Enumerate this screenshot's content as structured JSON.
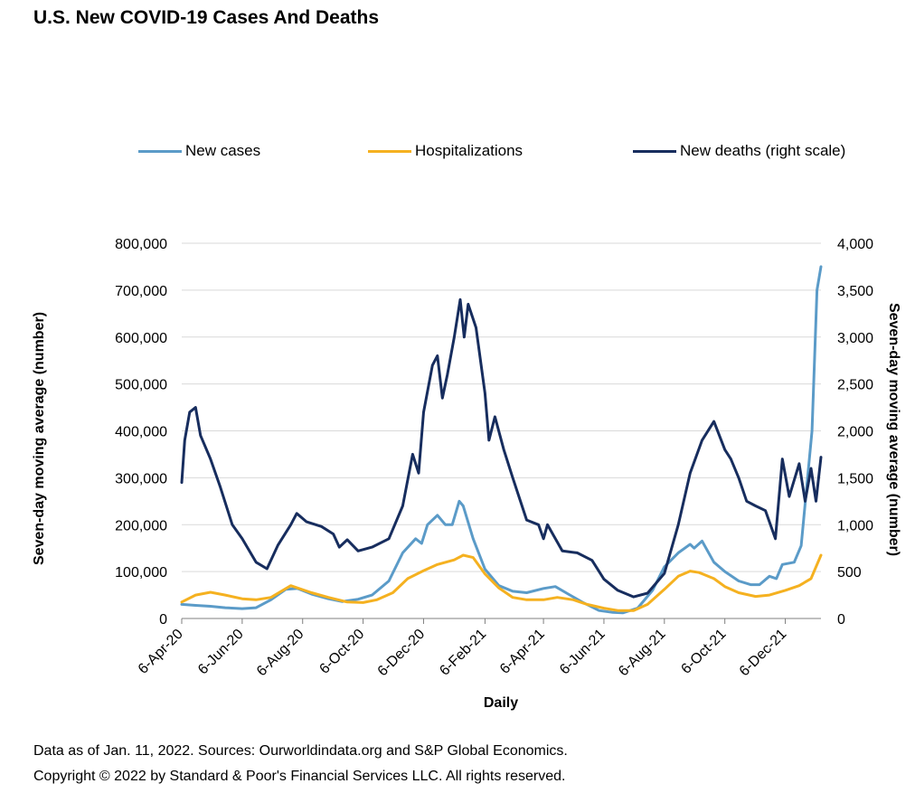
{
  "title": "U.S. New COVID-19 Cases And Deaths",
  "footer": {
    "line1": "Data as of Jan. 11, 2022. Sources: Ourworldindata.org and S&P Global  Economics.",
    "line2": "Copyright © 2022 by Standard & Poor's Financial Services LLC. All rights reserved."
  },
  "chart_data": {
    "type": "line",
    "title": "U.S. New COVID-19 Cases And Deaths",
    "xlabel": "Daily",
    "ylabel": "Seven-day moving average (number)",
    "y2label": "Seven-day moving average (number)",
    "ylim": [
      0,
      800000
    ],
    "y2lim": [
      0,
      4000
    ],
    "xlim": [
      "2020-04-06",
      "2022-01-11"
    ],
    "y_ticks": [
      "0",
      "100,000",
      "200,000",
      "300,000",
      "400,000",
      "500,000",
      "600,000",
      "700,000",
      "800,000"
    ],
    "y2_ticks": [
      "0",
      "500",
      "1,000",
      "1,500",
      "2,000",
      "2,500",
      "3,000",
      "3,500",
      "4,000"
    ],
    "x_ticks": [
      {
        "label": "6-Apr-20",
        "date": "2020-04-06"
      },
      {
        "label": "6-Jun-20",
        "date": "2020-06-06"
      },
      {
        "label": "6-Aug-20",
        "date": "2020-08-06"
      },
      {
        "label": "6-Oct-20",
        "date": "2020-10-06"
      },
      {
        "label": "6-Dec-20",
        "date": "2020-12-06"
      },
      {
        "label": "6-Feb-21",
        "date": "2021-02-06"
      },
      {
        "label": "6-Apr-21",
        "date": "2021-04-06"
      },
      {
        "label": "6-Jun-21",
        "date": "2021-06-06"
      },
      {
        "label": "6-Aug-21",
        "date": "2021-08-06"
      },
      {
        "label": "6-Oct-21",
        "date": "2021-10-06"
      },
      {
        "label": "6-Dec-21",
        "date": "2021-12-06"
      }
    ],
    "grid": true,
    "legend_position": "top",
    "series": [
      {
        "name": "New cases",
        "axis": "left",
        "color": "#5b9bc8",
        "points": [
          [
            "2020-04-06",
            30000
          ],
          [
            "2020-04-20",
            28000
          ],
          [
            "2020-05-05",
            26000
          ],
          [
            "2020-05-20",
            23000
          ],
          [
            "2020-06-06",
            21000
          ],
          [
            "2020-06-20",
            23000
          ],
          [
            "2020-07-05",
            40000
          ],
          [
            "2020-07-20",
            62000
          ],
          [
            "2020-08-01",
            64000
          ],
          [
            "2020-08-15",
            52000
          ],
          [
            "2020-09-01",
            42000
          ],
          [
            "2020-09-15",
            36000
          ],
          [
            "2020-10-01",
            41000
          ],
          [
            "2020-10-15",
            50000
          ],
          [
            "2020-11-01",
            80000
          ],
          [
            "2020-11-15",
            140000
          ],
          [
            "2020-11-28",
            170000
          ],
          [
            "2020-12-04",
            160000
          ],
          [
            "2020-12-10",
            200000
          ],
          [
            "2020-12-20",
            220000
          ],
          [
            "2020-12-28",
            200000
          ],
          [
            "2021-01-04",
            200000
          ],
          [
            "2021-01-11",
            250000
          ],
          [
            "2021-01-15",
            240000
          ],
          [
            "2021-01-25",
            170000
          ],
          [
            "2021-02-06",
            105000
          ],
          [
            "2021-02-20",
            70000
          ],
          [
            "2021-03-06",
            58000
          ],
          [
            "2021-03-20",
            55000
          ],
          [
            "2021-04-06",
            64000
          ],
          [
            "2021-04-18",
            68000
          ],
          [
            "2021-05-01",
            52000
          ],
          [
            "2021-05-15",
            35000
          ],
          [
            "2021-06-01",
            17000
          ],
          [
            "2021-06-15",
            13000
          ],
          [
            "2021-06-25",
            12000
          ],
          [
            "2021-07-10",
            22000
          ],
          [
            "2021-07-25",
            60000
          ],
          [
            "2021-08-06",
            110000
          ],
          [
            "2021-08-20",
            140000
          ],
          [
            "2021-09-01",
            158000
          ],
          [
            "2021-09-05",
            150000
          ],
          [
            "2021-09-13",
            165000
          ],
          [
            "2021-09-25",
            120000
          ],
          [
            "2021-10-06",
            100000
          ],
          [
            "2021-10-20",
            80000
          ],
          [
            "2021-11-01",
            72000
          ],
          [
            "2021-11-10",
            72000
          ],
          [
            "2021-11-20",
            90000
          ],
          [
            "2021-11-27",
            85000
          ],
          [
            "2021-12-03",
            115000
          ],
          [
            "2021-12-15",
            120000
          ],
          [
            "2021-12-22",
            155000
          ],
          [
            "2021-12-28",
            290000
          ],
          [
            "2022-01-02",
            400000
          ],
          [
            "2022-01-07",
            700000
          ],
          [
            "2022-01-11",
            750000
          ]
        ]
      },
      {
        "name": "Hospitalizations",
        "axis": "left",
        "color": "#f5b120",
        "points": [
          [
            "2020-04-06",
            35000
          ],
          [
            "2020-04-20",
            50000
          ],
          [
            "2020-05-05",
            56000
          ],
          [
            "2020-05-20",
            50000
          ],
          [
            "2020-06-06",
            42000
          ],
          [
            "2020-06-20",
            40000
          ],
          [
            "2020-07-05",
            45000
          ],
          [
            "2020-07-25",
            70000
          ],
          [
            "2020-08-15",
            55000
          ],
          [
            "2020-09-01",
            45000
          ],
          [
            "2020-09-20",
            35000
          ],
          [
            "2020-10-06",
            34000
          ],
          [
            "2020-10-20",
            40000
          ],
          [
            "2020-11-05",
            55000
          ],
          [
            "2020-11-20",
            85000
          ],
          [
            "2020-12-06",
            102000
          ],
          [
            "2020-12-20",
            115000
          ],
          [
            "2021-01-06",
            125000
          ],
          [
            "2021-01-15",
            135000
          ],
          [
            "2021-01-25",
            130000
          ],
          [
            "2021-02-06",
            95000
          ],
          [
            "2021-02-20",
            65000
          ],
          [
            "2021-03-06",
            45000
          ],
          [
            "2021-03-20",
            40000
          ],
          [
            "2021-04-06",
            40000
          ],
          [
            "2021-04-20",
            45000
          ],
          [
            "2021-05-06",
            40000
          ],
          [
            "2021-05-20",
            30000
          ],
          [
            "2021-06-06",
            22000
          ],
          [
            "2021-06-20",
            17000
          ],
          [
            "2021-07-06",
            17000
          ],
          [
            "2021-07-20",
            30000
          ],
          [
            "2021-08-06",
            62000
          ],
          [
            "2021-08-20",
            90000
          ],
          [
            "2021-09-01",
            101000
          ],
          [
            "2021-09-10",
            98000
          ],
          [
            "2021-09-25",
            85000
          ],
          [
            "2021-10-06",
            68000
          ],
          [
            "2021-10-20",
            55000
          ],
          [
            "2021-11-06",
            47000
          ],
          [
            "2021-11-20",
            50000
          ],
          [
            "2021-12-06",
            60000
          ],
          [
            "2021-12-20",
            70000
          ],
          [
            "2022-01-01",
            85000
          ],
          [
            "2022-01-11",
            135000
          ]
        ]
      },
      {
        "name": "New deaths (right scale)",
        "axis": "right",
        "color": "#172d5e",
        "points": [
          [
            "2020-04-06",
            1450
          ],
          [
            "2020-04-09",
            1900
          ],
          [
            "2020-04-14",
            2200
          ],
          [
            "2020-04-20",
            2250
          ],
          [
            "2020-04-25",
            1950
          ],
          [
            "2020-05-05",
            1700
          ],
          [
            "2020-05-15",
            1400
          ],
          [
            "2020-05-27",
            1000
          ],
          [
            "2020-06-06",
            850
          ],
          [
            "2020-06-20",
            600
          ],
          [
            "2020-07-01",
            530
          ],
          [
            "2020-07-12",
            780
          ],
          [
            "2020-07-25",
            1000
          ],
          [
            "2020-07-31",
            1120
          ],
          [
            "2020-08-10",
            1030
          ],
          [
            "2020-08-25",
            980
          ],
          [
            "2020-09-06",
            900
          ],
          [
            "2020-09-12",
            760
          ],
          [
            "2020-09-20",
            840
          ],
          [
            "2020-10-01",
            720
          ],
          [
            "2020-10-15",
            760
          ],
          [
            "2020-11-01",
            850
          ],
          [
            "2020-11-15",
            1200
          ],
          [
            "2020-11-25",
            1750
          ],
          [
            "2020-12-01",
            1550
          ],
          [
            "2020-12-06",
            2200
          ],
          [
            "2020-12-15",
            2700
          ],
          [
            "2020-12-20",
            2800
          ],
          [
            "2020-12-25",
            2350
          ],
          [
            "2020-12-30",
            2600
          ],
          [
            "2021-01-06",
            3000
          ],
          [
            "2021-01-12",
            3400
          ],
          [
            "2021-01-16",
            3000
          ],
          [
            "2021-01-20",
            3350
          ],
          [
            "2021-01-28",
            3100
          ],
          [
            "2021-02-06",
            2400
          ],
          [
            "2021-02-10",
            1900
          ],
          [
            "2021-02-16",
            2150
          ],
          [
            "2021-02-25",
            1800
          ],
          [
            "2021-03-06",
            1500
          ],
          [
            "2021-03-20",
            1050
          ],
          [
            "2021-04-01",
            1000
          ],
          [
            "2021-04-06",
            850
          ],
          [
            "2021-04-10",
            1000
          ],
          [
            "2021-04-25",
            720
          ],
          [
            "2021-05-10",
            700
          ],
          [
            "2021-05-25",
            620
          ],
          [
            "2021-06-06",
            420
          ],
          [
            "2021-06-20",
            300
          ],
          [
            "2021-07-06",
            230
          ],
          [
            "2021-07-20",
            270
          ],
          [
            "2021-08-06",
            480
          ],
          [
            "2021-08-20",
            1000
          ],
          [
            "2021-09-01",
            1550
          ],
          [
            "2021-09-13",
            1900
          ],
          [
            "2021-09-25",
            2100
          ],
          [
            "2021-10-06",
            1800
          ],
          [
            "2021-10-12",
            1700
          ],
          [
            "2021-10-20",
            1500
          ],
          [
            "2021-10-28",
            1250
          ],
          [
            "2021-11-06",
            1200
          ],
          [
            "2021-11-16",
            1150
          ],
          [
            "2021-11-26",
            850
          ],
          [
            "2021-12-03",
            1700
          ],
          [
            "2021-12-10",
            1300
          ],
          [
            "2021-12-20",
            1650
          ],
          [
            "2021-12-26",
            1250
          ],
          [
            "2022-01-01",
            1600
          ],
          [
            "2022-01-06",
            1250
          ],
          [
            "2022-01-11",
            1720
          ]
        ]
      }
    ]
  }
}
